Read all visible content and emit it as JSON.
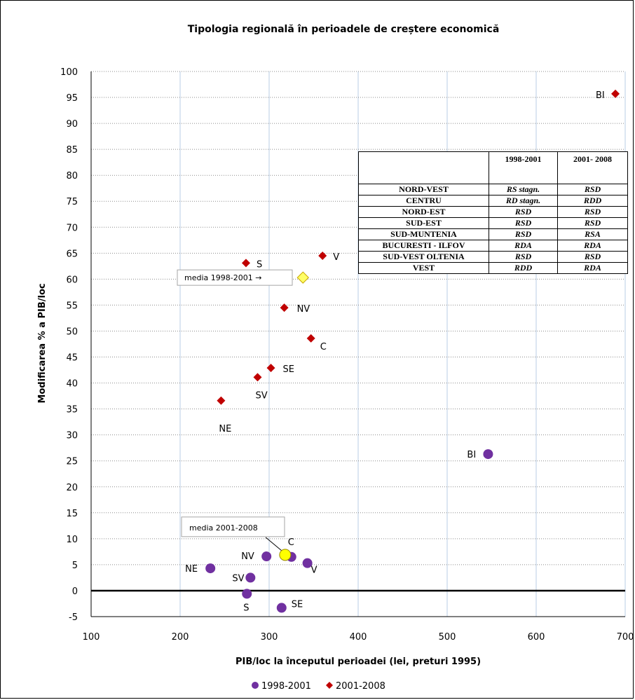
{
  "chart_data": {
    "type": "scatter",
    "title": "Tipologia regională în perioadele de creștere economică",
    "xlabel": "PIB/loc la începutul perioadei (lei, preturi 1995)",
    "ylabel": "Modificarea % a PIB/loc",
    "xlim": [
      100,
      700
    ],
    "ylim": [
      -5,
      100
    ],
    "x_ticks": [
      "100",
      "200",
      "300",
      "400",
      "500",
      "600",
      "700"
    ],
    "y_ticks": [
      "-5",
      "0",
      "5",
      "10",
      "15",
      "20",
      "25",
      "30",
      "35",
      "40",
      "45",
      "50",
      "55",
      "60",
      "65",
      "70",
      "75",
      "80",
      "85",
      "90",
      "95",
      "100"
    ],
    "grid": "horizontal dotted, vertical solid",
    "legend_position": "bottom",
    "series": [
      {
        "name": "1998-2001",
        "marker": "circle",
        "color": "#7030A0",
        "points": [
          {
            "label": "NE",
            "x": 234,
            "y": 4.3
          },
          {
            "label": "SV",
            "x": 279,
            "y": 2.5
          },
          {
            "label": "S",
            "x": 275,
            "y": -0.6
          },
          {
            "label": "NV",
            "x": 297,
            "y": 6.6
          },
          {
            "label": "C",
            "x": 325,
            "y": 6.5
          },
          {
            "label": "V",
            "x": 343,
            "y": 5.3
          },
          {
            "label": "SE",
            "x": 314,
            "y": -3.3
          },
          {
            "label": "BI",
            "x": 546,
            "y": 26.3
          }
        ]
      },
      {
        "name": "2001-2008",
        "marker": "diamond",
        "color": "#C00000",
        "points": [
          {
            "label": "NE",
            "x": 246,
            "y": 36.6
          },
          {
            "label": "SV",
            "x": 287,
            "y": 41.1
          },
          {
            "label": "SE",
            "x": 302,
            "y": 42.9
          },
          {
            "label": "C",
            "x": 347,
            "y": 48.6
          },
          {
            "label": "NV",
            "x": 317,
            "y": 54.5
          },
          {
            "label": "S",
            "x": 274,
            "y": 63.1
          },
          {
            "label": "V",
            "x": 360,
            "y": 64.5
          },
          {
            "label": "BI",
            "x": 689,
            "y": 95.7
          }
        ]
      }
    ],
    "averages": [
      {
        "label": "media 1998-2001 →",
        "x": 338,
        "y": 60.3,
        "marker": "diamond",
        "color": "#FFFF66"
      },
      {
        "label": "media 2001-2008",
        "x": 318,
        "y": 6.9,
        "marker": "circle",
        "color": "#FFFF00"
      }
    ],
    "table": {
      "headers": [
        "",
        "1998-2001",
        "2001- 2008"
      ],
      "rows": [
        [
          "NORD-VEST",
          "RS stagn.",
          "RSD"
        ],
        [
          "CENTRU",
          "RD stagn.",
          "RDD"
        ],
        [
          "NORD-EST",
          "RSD",
          "RSD"
        ],
        [
          "SUD-EST",
          "RSD",
          "RSD"
        ],
        [
          "SUD-MUNTENIA",
          "RSD",
          "RSA"
        ],
        [
          "BUCURESTI - ILFOV",
          "RDA",
          "RDA"
        ],
        [
          "SUD-VEST OLTENIA",
          "RSD",
          "RSD"
        ],
        [
          "VEST",
          "RDD",
          "RDA"
        ]
      ]
    }
  }
}
